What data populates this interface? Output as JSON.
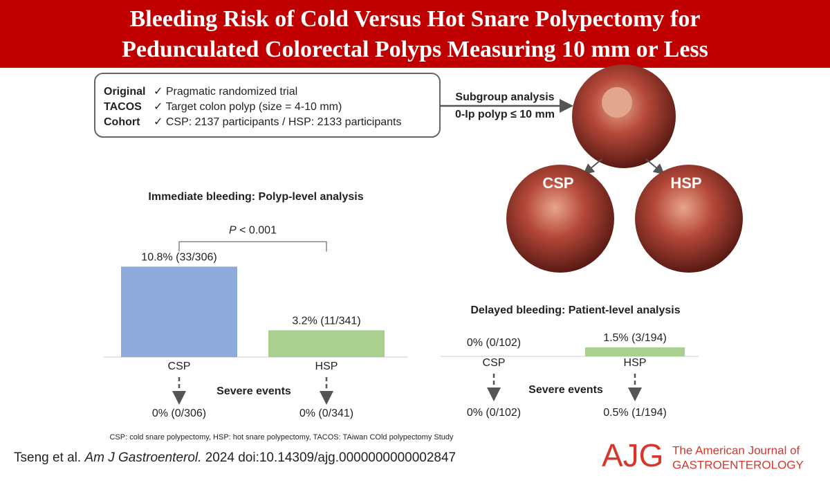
{
  "header": {
    "title_lines": [
      "Bleeding Risk of Cold Versus Hot Snare Polypectomy for",
      "Pedunculated Colorectal Polyps Measuring 10 mm or Less"
    ]
  },
  "cohort_box": {
    "labels": [
      "Original",
      "TACOS",
      "Cohort"
    ],
    "items": [
      "✓  Pragmatic randomized trial",
      "✓  Target colon polyp (size = 4-10 mm)",
      "✓  CSP: 2137 participants / HSP: 2133 participants"
    ]
  },
  "subgroup": {
    "line1": "Subgroup analysis",
    "line2": "0-Ip polyp ≤ 10 mm"
  },
  "images": {
    "left_label": "CSP",
    "right_label": "HSP"
  },
  "chart_data": [
    {
      "type": "bar",
      "title": "Immediate bleeding: Polyp-level analysis",
      "categories": [
        "CSP",
        "HSP"
      ],
      "values": [
        10.8,
        3.2
      ],
      "value_labels": [
        "10.8% (33/306)",
        "3.2% (11/341)"
      ],
      "colors": [
        "#8eaadb",
        "#a9d08e"
      ],
      "annotation": {
        "symbol": "P",
        "text": "< 0.001"
      },
      "severe_events": {
        "title": "Severe events",
        "labels": [
          "0% (0/306)",
          "0% (0/341)"
        ]
      }
    },
    {
      "type": "bar",
      "title": "Delayed bleeding: Patient-level analysis",
      "categories": [
        "CSP",
        "HSP"
      ],
      "values": [
        0,
        1.5
      ],
      "value_labels": [
        "0% (0/102)",
        "1.5% (3/194)"
      ],
      "colors": [
        "#8eaadb",
        "#a9d08e"
      ],
      "severe_events": {
        "title": "Severe events",
        "labels": [
          "0% (0/102)",
          "0.5% (1/194)"
        ]
      }
    }
  ],
  "footnote": "CSP: cold snare polypectomy, HSP: hot snare polypectomy, TACOS: TAiwan COld polypectomy Study",
  "citation": {
    "authors": "Tseng et al.",
    "journal": "Am J Gastroenterol.",
    "rest": "2024 doi:10.14309/ajg.0000000000002847"
  },
  "logo": {
    "mark": "AJG",
    "line1": "The American Journal of",
    "line2": "GASTROENTEROLOGY"
  }
}
